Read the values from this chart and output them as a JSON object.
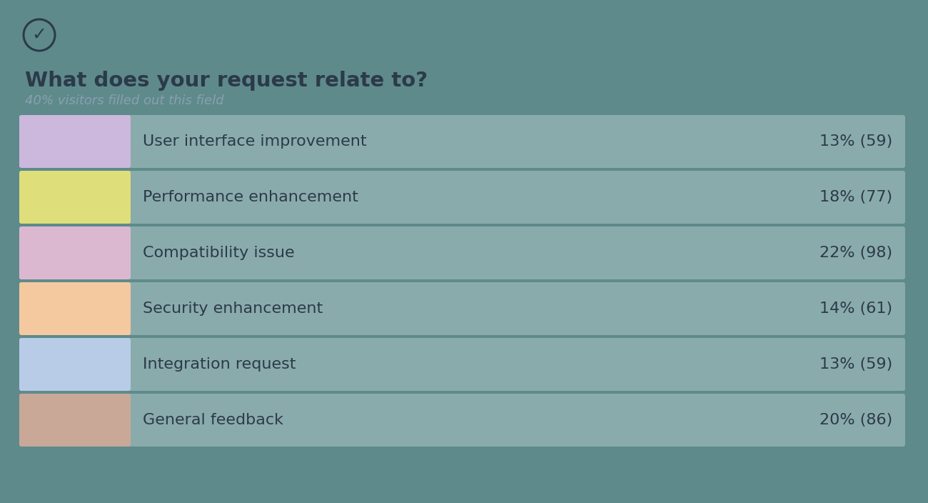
{
  "title": "What does your request relate to?",
  "subtitle": "40% visitors filled out this field",
  "background_color": "#5e8a8b",
  "bar_bg_color": "#8aabab",
  "categories": [
    "User interface improvement",
    "Performance enhancement",
    "Compatibility issue",
    "Security enhancement",
    "Integration request",
    "General feedback"
  ],
  "percentages": [
    13,
    18,
    22,
    14,
    13,
    20
  ],
  "counts": [
    59,
    77,
    98,
    61,
    59,
    86
  ],
  "icon_bg_colors": [
    "#cbb8dc",
    "#dede7a",
    "#dcb8d0",
    "#f5c9a0",
    "#b8cce8",
    "#c9a898"
  ],
  "title_color": "#2c3a4a",
  "subtitle_color": "#8aa0b0",
  "label_color": "#2c3a4a",
  "value_color": "#2c3a4a",
  "title_fontsize": 21,
  "subtitle_fontsize": 13,
  "label_fontsize": 16,
  "value_fontsize": 16,
  "checkmark_fontsize": 18
}
